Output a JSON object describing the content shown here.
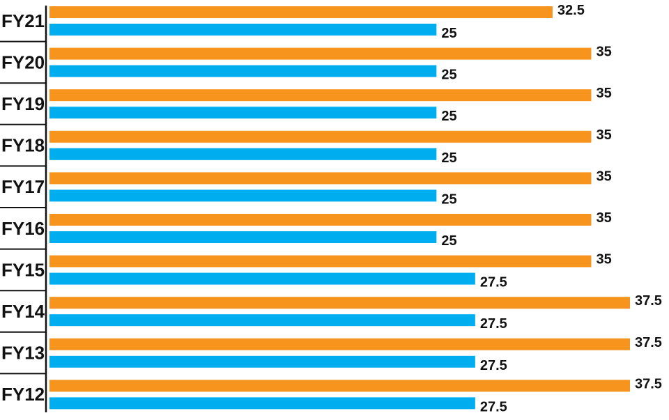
{
  "chart_data": {
    "type": "bar",
    "orientation": "horizontal",
    "categories": [
      "FY21",
      "FY20",
      "FY19",
      "FY18",
      "FY17",
      "FY16",
      "FY15",
      "FY14",
      "FY13",
      "FY12"
    ],
    "series": [
      {
        "values": [
          32.5,
          35,
          35,
          35,
          35,
          35,
          35,
          37.5,
          37.5,
          37.5
        ],
        "color": "#F7941D"
      },
      {
        "values": [
          25,
          25,
          25,
          25,
          25,
          25,
          27.5,
          27.5,
          27.5,
          27.5
        ],
        "color": "#00AEEF"
      }
    ],
    "value_labels": [
      [
        "32.5",
        "35",
        "35",
        "35",
        "35",
        "35",
        "35",
        "37.5",
        "37.5",
        "37.5"
      ],
      [
        "25",
        "25",
        "25",
        "25",
        "25",
        "25",
        "27.5",
        "27.5",
        "27.5",
        "27.5"
      ]
    ],
    "xlim": [
      0,
      37.5
    ],
    "grid": false,
    "legend": "none",
    "axis_color": "#111111"
  }
}
